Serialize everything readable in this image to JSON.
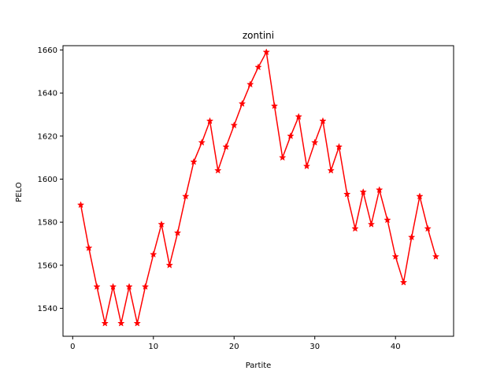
{
  "chart_data": {
    "type": "line",
    "title": "zontini",
    "xlabel": "Partite",
    "ylabel": "PELO",
    "xlim": [
      -1.2,
      47.2
    ],
    "ylim": [
      1527,
      1662
    ],
    "xticks": [
      0,
      10,
      20,
      30,
      40
    ],
    "yticks": [
      1540,
      1560,
      1580,
      1600,
      1620,
      1640,
      1660
    ],
    "grid": false,
    "legend": "none",
    "series": [
      {
        "color": "#ff0000",
        "marker": "star",
        "x": [
          1,
          2,
          3,
          4,
          5,
          6,
          7,
          8,
          9,
          10,
          11,
          12,
          13,
          14,
          15,
          16,
          17,
          18,
          19,
          20,
          21,
          22,
          23,
          24,
          25,
          26,
          27,
          28,
          29,
          30,
          31,
          32,
          33,
          34,
          35,
          36,
          37,
          38,
          39,
          40,
          41,
          42,
          43,
          44,
          45
        ],
        "values": [
          1588,
          1568,
          1550,
          1533,
          1550,
          1533,
          1550,
          1533,
          1550,
          1565,
          1579,
          1560,
          1575,
          1592,
          1608,
          1617,
          1627,
          1604,
          1615,
          1625,
          1635,
          1644,
          1652,
          1659,
          1634,
          1610,
          1620,
          1629,
          1606,
          1617,
          1627,
          1604,
          1615,
          1593,
          1577,
          1594,
          1579,
          1595,
          1581,
          1564,
          1552,
          1573,
          1592,
          1577,
          1564
        ]
      }
    ]
  }
}
